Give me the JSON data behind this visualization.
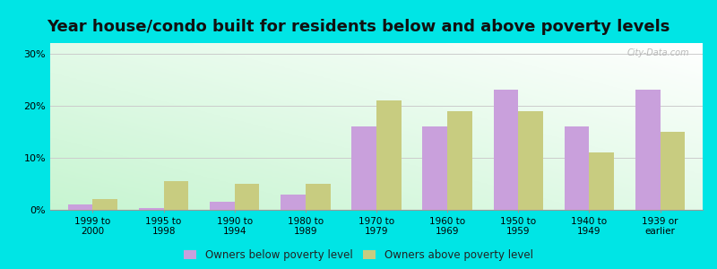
{
  "title": "Year house/condo built for residents below and above poverty levels",
  "categories": [
    "1999 to\n2000",
    "1995 to\n1998",
    "1990 to\n1994",
    "1980 to\n1989",
    "1970 to\n1979",
    "1960 to\n1969",
    "1950 to\n1959",
    "1940 to\n1949",
    "1939 or\nearlier"
  ],
  "below_poverty": [
    1.0,
    0.4,
    1.5,
    3.0,
    16.0,
    16.0,
    23.0,
    16.0,
    23.0
  ],
  "above_poverty": [
    2.0,
    5.5,
    5.0,
    5.0,
    21.0,
    19.0,
    19.0,
    11.0,
    15.0
  ],
  "below_color": "#c9a0dc",
  "above_color": "#c8cc80",
  "background_top_right": "#ffffff",
  "background_bottom_left": "#c8f0d0",
  "outer_background": "#00e5e5",
  "ylim": [
    0,
    32
  ],
  "yticks": [
    0,
    10,
    20,
    30
  ],
  "ytick_labels": [
    "0%",
    "10%",
    "20%",
    "30%"
  ],
  "legend_below": "Owners below poverty level",
  "legend_above": "Owners above poverty level",
  "title_fontsize": 13,
  "bar_width": 0.35,
  "grid_color": "#cccccc",
  "watermark": "City-Data.com"
}
